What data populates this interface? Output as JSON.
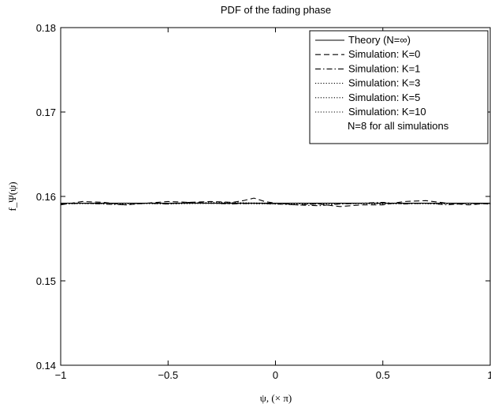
{
  "chart_data": {
    "type": "line",
    "title": "PDF of the fading phase",
    "xlabel": "ψ,  (× π)",
    "ylabel": "f_Ψ(ψ)",
    "xlim": [
      -1,
      1
    ],
    "ylim": [
      0.14,
      0.18
    ],
    "xticks": [
      -1,
      -0.5,
      0,
      0.5,
      1
    ],
    "xtick_labels": [
      "−1",
      "−0.5",
      "0",
      "0.5",
      "1"
    ],
    "yticks": [
      0.14,
      0.15,
      0.16,
      0.17,
      0.18
    ],
    "ytick_labels": [
      "0.14",
      "0.15",
      "0.16",
      "0.17",
      "0.18"
    ],
    "grid": false,
    "legend_position": "top-right",
    "legend_note": "N=8 for all simulations",
    "series": [
      {
        "name": "Theory  (N=∞)",
        "style": "solid",
        "x": [
          -1,
          1
        ],
        "y": [
          0.1592,
          0.1592
        ]
      },
      {
        "name": "Simulation: K=0",
        "style": "dashed",
        "x": [
          -1,
          -0.9,
          -0.8,
          -0.7,
          -0.6,
          -0.5,
          -0.4,
          -0.3,
          -0.2,
          -0.15,
          -0.1,
          -0.05,
          0,
          0.1,
          0.2,
          0.3,
          0.4,
          0.5,
          0.6,
          0.7,
          0.8,
          0.9,
          1
        ],
        "y": [
          0.159,
          0.1594,
          0.1593,
          0.159,
          0.1592,
          0.1594,
          0.1593,
          0.1594,
          0.1593,
          0.1595,
          0.1598,
          0.1594,
          0.1592,
          0.159,
          0.1591,
          0.1588,
          0.159,
          0.159,
          0.1594,
          0.1595,
          0.1592,
          0.159,
          0.1592
        ]
      },
      {
        "name": "Simulation: K=1",
        "style": "dashdot",
        "x": [
          -1,
          -0.9,
          -0.8,
          -0.7,
          -0.6,
          -0.5,
          -0.4,
          -0.3,
          -0.2,
          -0.1,
          0,
          0.1,
          0.2,
          0.3,
          0.4,
          0.5,
          0.6,
          0.7,
          0.8,
          0.9,
          1
        ],
        "y": [
          0.1591,
          0.1592,
          0.1591,
          0.159,
          0.1592,
          0.1591,
          0.1593,
          0.1592,
          0.1591,
          0.1592,
          0.1591,
          0.159,
          0.1589,
          0.1591,
          0.1592,
          0.1593,
          0.1591,
          0.1592,
          0.159,
          0.1592,
          0.1591
        ]
      },
      {
        "name": "Simulation: K=3",
        "style": "dotted",
        "x": [
          -1,
          -0.75,
          -0.5,
          -0.25,
          0,
          0.25,
          0.5,
          0.75,
          1
        ],
        "y": [
          0.1592,
          0.1591,
          0.1592,
          0.1593,
          0.1592,
          0.1591,
          0.1592,
          0.1591,
          0.1592
        ]
      },
      {
        "name": "Simulation: K=5",
        "style": "dotted",
        "x": [
          -1,
          -0.75,
          -0.5,
          -0.25,
          0,
          0.25,
          0.5,
          0.75,
          1
        ],
        "y": [
          0.1591,
          0.1592,
          0.1591,
          0.1592,
          0.1591,
          0.1592,
          0.1591,
          0.1592,
          0.1591
        ]
      },
      {
        "name": "Simulation: K=10",
        "style": "dotted",
        "x": [
          -1,
          -0.5,
          0,
          0.5,
          1
        ],
        "y": [
          0.1592,
          0.1592,
          0.1591,
          0.1592,
          0.1592
        ]
      }
    ]
  }
}
